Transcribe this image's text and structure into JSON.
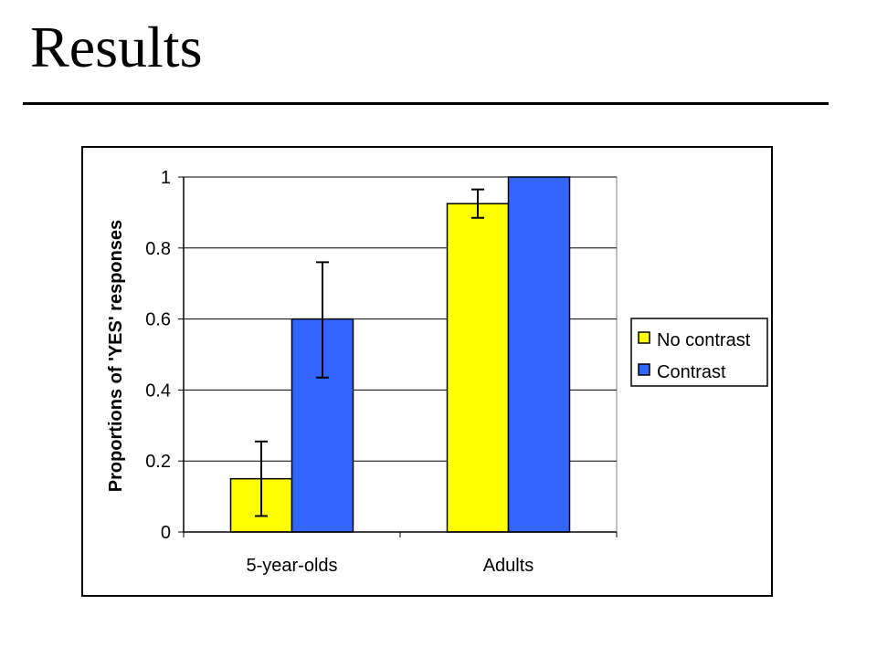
{
  "slide": {
    "title": "Results"
  },
  "colors": {
    "no_contrast": "#ffff00",
    "contrast": "#3366ff",
    "outline": "#000000",
    "gridline": "#000000"
  },
  "chart_data": {
    "type": "bar",
    "title": "",
    "xlabel": "",
    "ylabel": "Proportions of 'YES' responses",
    "categories": [
      "5-year-olds",
      "Adults"
    ],
    "ylim": [
      0,
      1
    ],
    "yticks": [
      "0",
      "0.2",
      "0.4",
      "0.6",
      "0.8",
      "1"
    ],
    "grid": true,
    "legend_position": "right",
    "series": [
      {
        "name": "No contrast",
        "color": "#ffff00",
        "values": [
          0.15,
          0.925
        ],
        "error_low": [
          0.045,
          0.885
        ],
        "error_high": [
          0.255,
          0.965
        ]
      },
      {
        "name": "Contrast",
        "color": "#3366ff",
        "values": [
          0.6,
          1.0
        ],
        "error_low": [
          0.435,
          null
        ],
        "error_high": [
          0.76,
          null
        ]
      }
    ]
  }
}
